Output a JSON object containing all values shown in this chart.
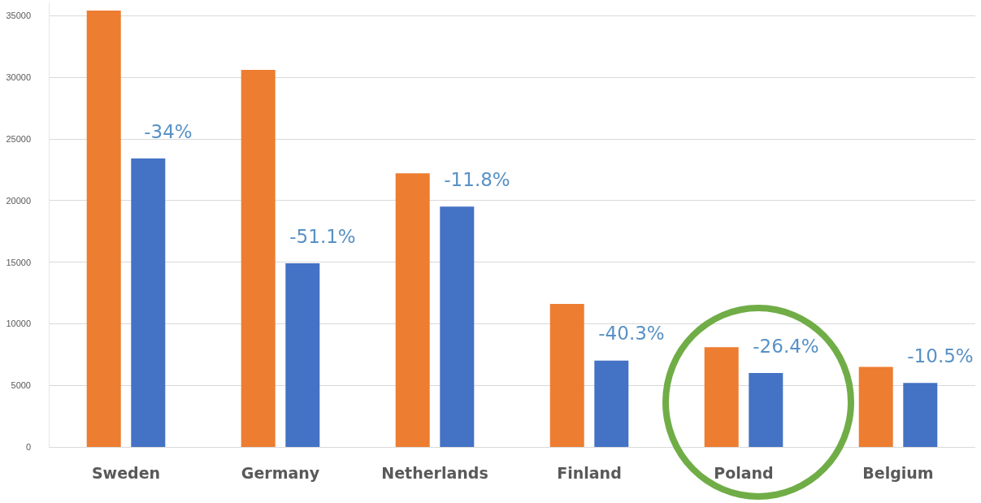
{
  "chart_data": {
    "type": "bar",
    "categories": [
      "Sweden",
      "Germany",
      "Netherlands",
      "Finland",
      "Poland",
      "Belgium"
    ],
    "series": [
      {
        "color": "#ed7d31",
        "values": [
          35400,
          30600,
          22200,
          11600,
          8100,
          6500
        ]
      },
      {
        "color": "#4472c4",
        "values": [
          23400,
          14900,
          19500,
          7000,
          6000,
          5200
        ]
      }
    ],
    "annotations": [
      "-34%",
      "-51.1%",
      "-11.8%",
      "-40.3%",
      "-26.4%",
      "-10.5%"
    ],
    "ylim": [
      0,
      36000
    ],
    "yticks": [
      0,
      5000,
      10000,
      15000,
      20000,
      25000,
      30000,
      35000
    ],
    "grid": "y"
  }
}
